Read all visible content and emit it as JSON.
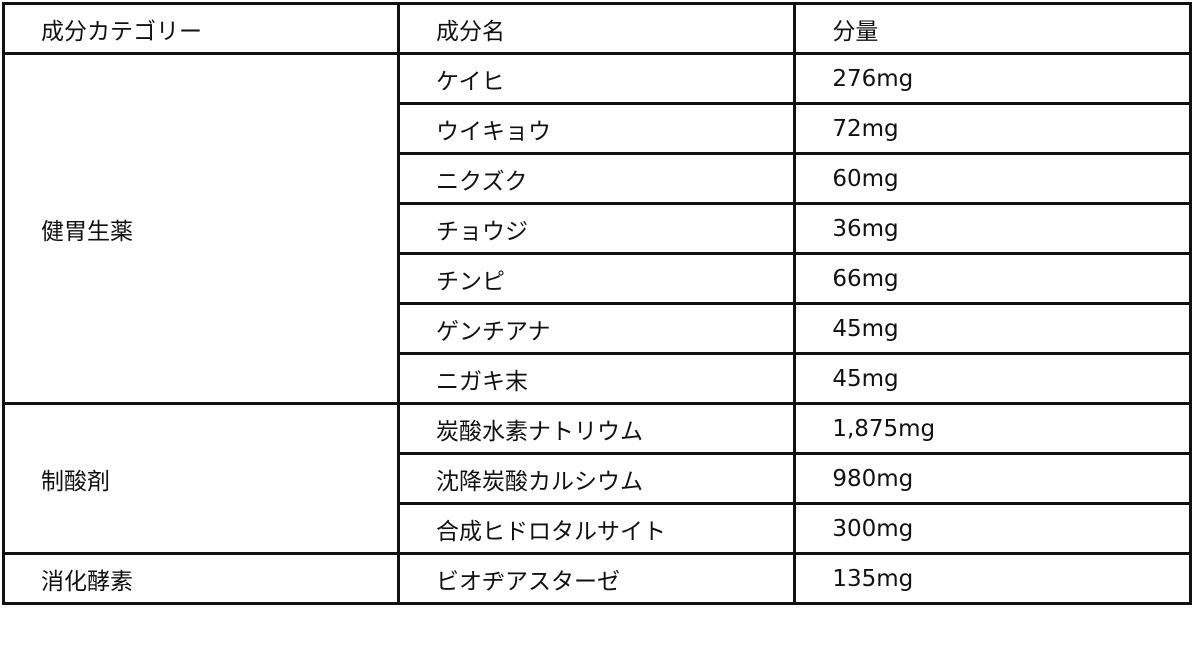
{
  "headers": [
    "成分カテゴリー",
    "成分名",
    "分量"
  ],
  "groups": [
    {
      "category": "健胃生薬",
      "rows": [
        {
          "name": "ケイヒ",
          "amount": "276mg"
        },
        {
          "name": "ウイキョウ",
          "amount": "72mg"
        },
        {
          "name": "ニクズク",
          "amount": "60mg"
        },
        {
          "name": "チョウジ",
          "amount": "36mg"
        },
        {
          "name": "チンピ",
          "amount": "66mg"
        },
        {
          "name": "ゲンチアナ",
          "amount": "45mg"
        },
        {
          "name": "ニガキ末",
          "amount": "45mg"
        }
      ]
    },
    {
      "category": "制酸剤",
      "rows": [
        {
          "name": "炭酸水素ナトリウム",
          "amount": "1,875mg"
        },
        {
          "name": "沈降炭酸カルシウム",
          "amount": "980mg"
        },
        {
          "name": "合成ヒドロタルサイト",
          "amount": "300mg"
        }
      ]
    },
    {
      "category": "消化酵素",
      "rows": [
        {
          "name": "ビオヂアスターゼ",
          "amount": "135mg"
        }
      ]
    }
  ]
}
